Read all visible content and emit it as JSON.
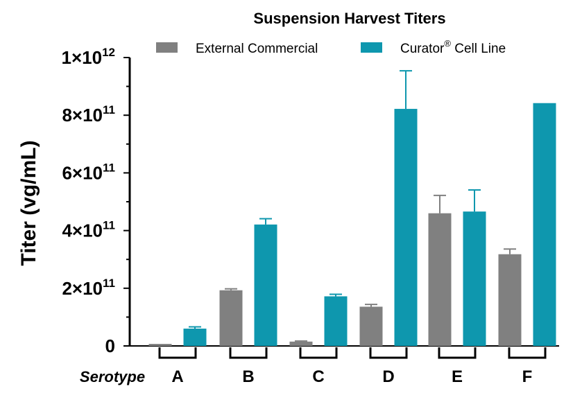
{
  "chart_data": {
    "type": "bar",
    "title": "Suspension Harvest Titers",
    "ylabel": "Titer (vg/mL)",
    "xlabel": "",
    "category_axis_label": "Serotype",
    "categories": [
      "A",
      "B",
      "C",
      "D",
      "E",
      "F"
    ],
    "ylim": [
      0,
      1000000000000
    ],
    "yticks": [
      {
        "value": 0,
        "base": "0",
        "exp": ""
      },
      {
        "value": 200000000000,
        "base": "2×10",
        "exp": "11"
      },
      {
        "value": 400000000000,
        "base": "4×10",
        "exp": "11"
      },
      {
        "value": 600000000000,
        "base": "6×10",
        "exp": "11"
      },
      {
        "value": 800000000000,
        "base": "8×10",
        "exp": "11"
      },
      {
        "value": 1000000000000,
        "base": "1×10",
        "exp": "12"
      }
    ],
    "legend_position": "top",
    "series": [
      {
        "name": "External Commercial",
        "color": "#808080",
        "values": [
          7000000000,
          193000000000,
          15000000000,
          136000000000,
          460000000000,
          318000000000
        ],
        "error": [
          0,
          5000000000,
          2000000000,
          8000000000,
          62000000000,
          18000000000
        ]
      },
      {
        "name": "Curator",
        "name_sup": "®",
        "name_suffix": " Cell Line",
        "color": "#0E97AE",
        "values": [
          60000000000,
          421000000000,
          172000000000,
          822000000000,
          466000000000,
          842000000000
        ],
        "error": [
          6000000000,
          20000000000,
          7000000000,
          132000000000,
          75000000000,
          0
        ]
      }
    ]
  }
}
